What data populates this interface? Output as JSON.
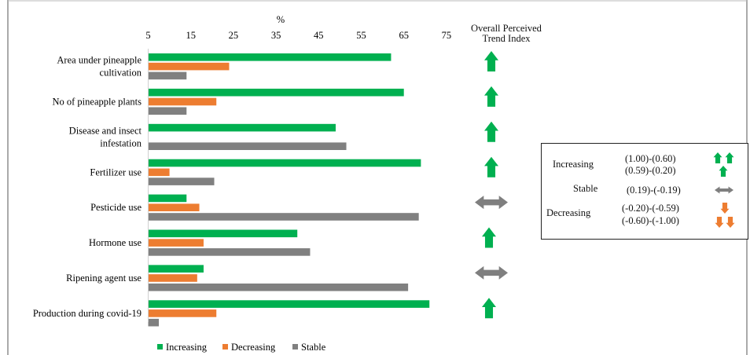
{
  "chart_data": {
    "type": "bar",
    "orientation": "horizontal",
    "title": "",
    "xlabel": "%",
    "ylabel": "",
    "xlim": [
      5,
      75
    ],
    "x_ticks": [
      "5",
      "15",
      "25",
      "35",
      "45",
      "55",
      "65",
      "75"
    ],
    "categories": [
      "Area under pineapple cultivation",
      "No of pineapple plants",
      "Disease and insect infestation",
      "Fertilizer use",
      "Pesticide use",
      "Hormone use",
      "Ripening agent use",
      "Production during covid-19"
    ],
    "category_lines": [
      [
        "Area under pineapple",
        "cultivation"
      ],
      [
        "No of pineapple plants"
      ],
      [
        "Disease and insect",
        "infestation"
      ],
      [
        "Fertilizer use"
      ],
      [
        "Pesticide use"
      ],
      [
        "Hormone use"
      ],
      [
        "Ripening agent use"
      ],
      [
        "Production during covid-19"
      ]
    ],
    "series": [
      {
        "name": "Increasing",
        "color": "#00b050",
        "values": [
          62,
          65,
          49,
          69,
          14,
          40,
          18,
          71
        ]
      },
      {
        "name": "Decreasing",
        "color": "#ed7d31",
        "values": [
          24,
          21,
          null,
          10,
          17,
          18,
          16.5,
          21
        ]
      },
      {
        "name": "Stable",
        "color": "#808080",
        "values": [
          14,
          14,
          51.5,
          20.5,
          68.5,
          43,
          66,
          7.5
        ]
      }
    ],
    "legend_position": "bottom",
    "grid": false,
    "trend_column": {
      "title_lines": [
        "Overall Perceived",
        "Trend Index"
      ],
      "arrows": [
        "up-green",
        "up-green",
        "up-green",
        "up-green",
        "both-gray",
        "up-green",
        "both-gray",
        "up-green"
      ]
    },
    "trend_legend": {
      "rows": [
        {
          "group": "Increasing",
          "range": "(1.00)-(0.60)",
          "icon": "double-up-green"
        },
        {
          "group": "",
          "range": "(0.59)-(0.20)",
          "icon": "up-green"
        },
        {
          "group": "Stable",
          "range": "(0.19)-(-0.19)",
          "icon": "both-gray"
        },
        {
          "group": "Decreasing",
          "range": "(-0.20)-(-0.59)",
          "icon": "down-orange"
        },
        {
          "group": "",
          "range": "(-0.60)-(-1.00)",
          "icon": "double-down-orange"
        }
      ]
    }
  }
}
